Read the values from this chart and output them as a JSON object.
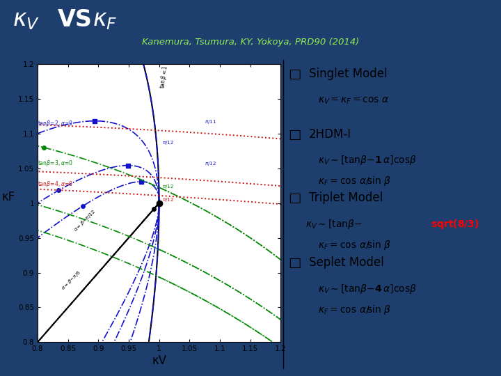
{
  "bg_header_color": "#1e3f6e",
  "bg_main_color": "#e8e8e8",
  "title_kv": "κV",
  "title_vs": "VS",
  "title_kf": "κF",
  "title_color": "#ffffff",
  "subtitle_text": "Kanemura, Tsumura, KY, Yokoya, PRD90 (2014)",
  "subtitle_color": "#90ee50",
  "xlim": [
    0.8,
    1.2
  ],
  "ylim": [
    0.8,
    1.2
  ],
  "xlabel": "κV",
  "ylabel": "κF",
  "singlet_color": "#000000",
  "hdm2_color": "#1111cc",
  "triplet_color": "#008800",
  "seplet_color": "#cc1111",
  "tanbeta_vals": [
    1,
    2,
    3,
    4
  ],
  "alpha_pt": 0.2618
}
